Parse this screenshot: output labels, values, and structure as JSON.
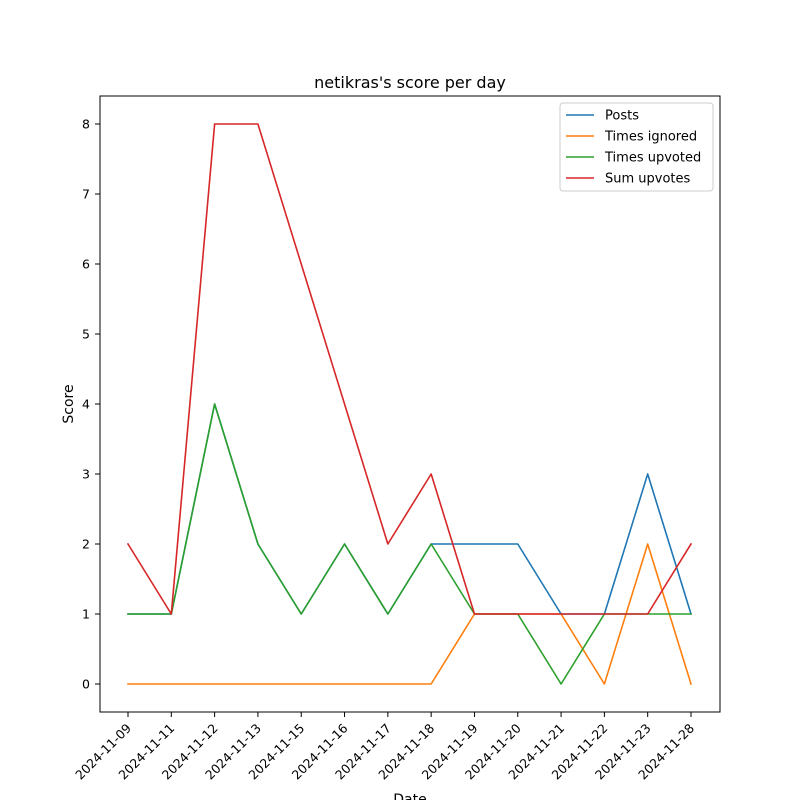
{
  "chart_data": {
    "type": "line",
    "title": "netikras's score per day",
    "xlabel": "Date",
    "ylabel": "Score",
    "categories": [
      "2024-11-09",
      "2024-11-11",
      "2024-11-12",
      "2024-11-13",
      "2024-11-15",
      "2024-11-16",
      "2024-11-17",
      "2024-11-18",
      "2024-11-19",
      "2024-11-20",
      "2024-11-21",
      "2024-11-22",
      "2024-11-23",
      "2024-11-28"
    ],
    "ylim": [
      -0.4,
      8.4
    ],
    "yticks": [
      0,
      1,
      2,
      3,
      4,
      5,
      6,
      7,
      8
    ],
    "grid": false,
    "legend_position": "top-right",
    "series": [
      {
        "name": "Posts",
        "color": "#1f77b4",
        "values": [
          1,
          1,
          4,
          2,
          1,
          2,
          1,
          2,
          2,
          2,
          1,
          1,
          3,
          1
        ]
      },
      {
        "name": "Times ignored",
        "color": "#ff7f0e",
        "values": [
          0,
          0,
          0,
          0,
          0,
          0,
          0,
          0,
          1,
          1,
          1,
          0,
          2,
          0
        ]
      },
      {
        "name": "Times upvoted",
        "color": "#2ca02c",
        "values": [
          1,
          1,
          4,
          2,
          1,
          2,
          1,
          2,
          1,
          1,
          0,
          1,
          1,
          1
        ]
      },
      {
        "name": "Sum upvotes",
        "color": "#d62728",
        "values": [
          2,
          1,
          8,
          8,
          6,
          4,
          2,
          3,
          1,
          1,
          1,
          1,
          1,
          2
        ]
      }
    ]
  }
}
